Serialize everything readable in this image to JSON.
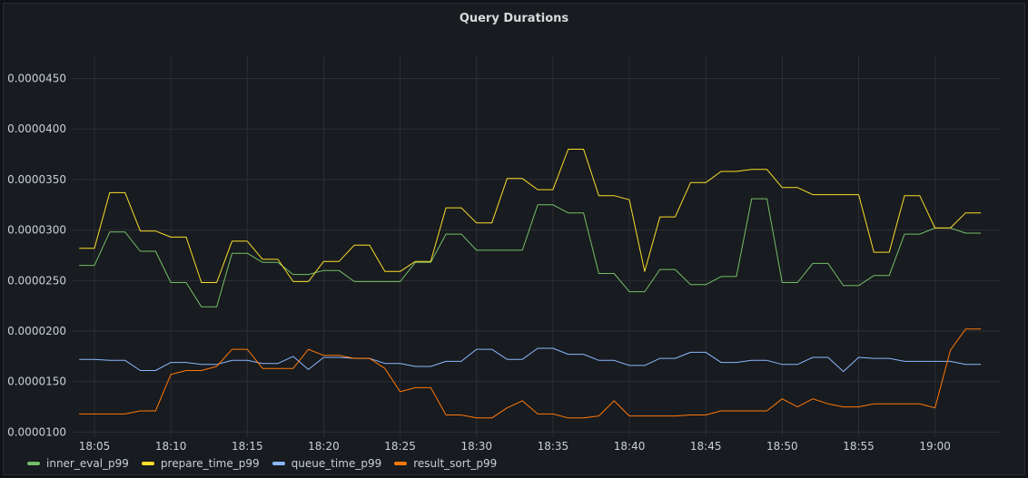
{
  "chart_data": {
    "type": "line",
    "title": "Query Durations",
    "xlabel": "",
    "ylabel": "",
    "x": [
      "18:04",
      "18:05",
      "18:06",
      "18:07",
      "18:08",
      "18:09",
      "18:10",
      "18:11",
      "18:12",
      "18:13",
      "18:14",
      "18:15",
      "18:16",
      "18:17",
      "18:18",
      "18:19",
      "18:20",
      "18:21",
      "18:22",
      "18:23",
      "18:24",
      "18:25",
      "18:26",
      "18:27",
      "18:28",
      "18:29",
      "18:30",
      "18:31",
      "18:32",
      "18:33",
      "18:34",
      "18:35",
      "18:36",
      "18:37",
      "18:38",
      "18:39",
      "18:40",
      "18:41",
      "18:42",
      "18:43",
      "18:44",
      "18:45",
      "18:46",
      "18:47",
      "18:48",
      "18:49",
      "18:50",
      "18:51",
      "18:52",
      "18:53",
      "18:54",
      "18:55",
      "18:56",
      "18:57",
      "18:58",
      "18:59",
      "19:00",
      "19:01",
      "19:02",
      "19:03"
    ],
    "x_ticks": [
      "18:05",
      "18:10",
      "18:15",
      "18:20",
      "18:25",
      "18:30",
      "18:35",
      "18:40",
      "18:45",
      "18:50",
      "18:55",
      "19:00"
    ],
    "y_ticks": [
      1e-05,
      1.5e-05,
      2e-05,
      2.5e-05,
      3e-05,
      3.5e-05,
      4e-05,
      4.5e-05
    ],
    "y_tick_labels": [
      "0.0000100",
      "0.0000150",
      "0.0000200",
      "0.0000250",
      "0.0000300",
      "0.0000350",
      "0.0000400",
      "0.0000450"
    ],
    "ylim": [
      9.5e-06,
      4.72e-05
    ],
    "grid": true,
    "legend_position": "bottom-left",
    "series": [
      {
        "name": "inner_eval_p99",
        "color": "#73bf69",
        "values": [
          2.65e-05,
          2.65e-05,
          2.98e-05,
          2.98e-05,
          2.79e-05,
          2.79e-05,
          2.48e-05,
          2.48e-05,
          2.24e-05,
          2.24e-05,
          2.77e-05,
          2.77e-05,
          2.68e-05,
          2.68e-05,
          2.56e-05,
          2.56e-05,
          2.6e-05,
          2.6e-05,
          2.49e-05,
          2.49e-05,
          2.49e-05,
          2.49e-05,
          2.68e-05,
          2.68e-05,
          2.96e-05,
          2.96e-05,
          2.8e-05,
          2.8e-05,
          2.8e-05,
          2.8e-05,
          3.25e-05,
          3.25e-05,
          3.17e-05,
          3.17e-05,
          2.57e-05,
          2.57e-05,
          2.39e-05,
          2.39e-05,
          2.61e-05,
          2.61e-05,
          2.46e-05,
          2.46e-05,
          2.54e-05,
          2.54e-05,
          3.31e-05,
          3.31e-05,
          2.48e-05,
          2.48e-05,
          2.67e-05,
          2.67e-05,
          2.45e-05,
          2.45e-05,
          2.55e-05,
          2.55e-05,
          2.96e-05,
          2.96e-05,
          3.02e-05,
          3.02e-05,
          2.97e-05,
          2.97e-05
        ]
      },
      {
        "name": "prepare_time_p99",
        "color": "#fade2a",
        "values": [
          2.82e-05,
          2.82e-05,
          3.37e-05,
          3.37e-05,
          2.99e-05,
          2.99e-05,
          2.93e-05,
          2.93e-05,
          2.48e-05,
          2.48e-05,
          2.89e-05,
          2.89e-05,
          2.71e-05,
          2.71e-05,
          2.49e-05,
          2.49e-05,
          2.69e-05,
          2.69e-05,
          2.85e-05,
          2.85e-05,
          2.59e-05,
          2.59e-05,
          2.69e-05,
          2.69e-05,
          3.22e-05,
          3.22e-05,
          3.07e-05,
          3.07e-05,
          3.51e-05,
          3.51e-05,
          3.4e-05,
          3.4e-05,
          3.8e-05,
          3.8e-05,
          3.34e-05,
          3.34e-05,
          3.3e-05,
          2.59e-05,
          3.13e-05,
          3.13e-05,
          3.47e-05,
          3.47e-05,
          3.58e-05,
          3.58e-05,
          3.6e-05,
          3.6e-05,
          3.42e-05,
          3.42e-05,
          3.35e-05,
          3.35e-05,
          3.35e-05,
          3.35e-05,
          2.78e-05,
          2.78e-05,
          3.34e-05,
          3.34e-05,
          3.02e-05,
          3.02e-05,
          3.17e-05,
          3.17e-05
        ]
      },
      {
        "name": "queue_time_p99",
        "color": "#8ab8ff",
        "values": [
          1.72e-05,
          1.72e-05,
          1.71e-05,
          1.71e-05,
          1.61e-05,
          1.61e-05,
          1.69e-05,
          1.69e-05,
          1.67e-05,
          1.67e-05,
          1.71e-05,
          1.71e-05,
          1.68e-05,
          1.68e-05,
          1.75e-05,
          1.62e-05,
          1.74e-05,
          1.74e-05,
          1.73e-05,
          1.73e-05,
          1.68e-05,
          1.68e-05,
          1.65e-05,
          1.65e-05,
          1.7e-05,
          1.7e-05,
          1.82e-05,
          1.82e-05,
          1.72e-05,
          1.72e-05,
          1.83e-05,
          1.83e-05,
          1.77e-05,
          1.77e-05,
          1.71e-05,
          1.71e-05,
          1.66e-05,
          1.66e-05,
          1.73e-05,
          1.73e-05,
          1.79e-05,
          1.79e-05,
          1.69e-05,
          1.69e-05,
          1.71e-05,
          1.71e-05,
          1.67e-05,
          1.67e-05,
          1.74e-05,
          1.74e-05,
          1.6e-05,
          1.74e-05,
          1.73e-05,
          1.73e-05,
          1.7e-05,
          1.7e-05,
          1.7e-05,
          1.7e-05,
          1.67e-05,
          1.67e-05
        ]
      },
      {
        "name": "result_sort_p99",
        "color": "#ff780a",
        "values": [
          1.18e-05,
          1.18e-05,
          1.18e-05,
          1.18e-05,
          1.21e-05,
          1.21e-05,
          1.57e-05,
          1.61e-05,
          1.61e-05,
          1.65e-05,
          1.82e-05,
          1.82e-05,
          1.63e-05,
          1.63e-05,
          1.63e-05,
          1.82e-05,
          1.76e-05,
          1.76e-05,
          1.73e-05,
          1.73e-05,
          1.63e-05,
          1.4e-05,
          1.44e-05,
          1.44e-05,
          1.17e-05,
          1.17e-05,
          1.14e-05,
          1.14e-05,
          1.24e-05,
          1.31e-05,
          1.18e-05,
          1.18e-05,
          1.14e-05,
          1.14e-05,
          1.16e-05,
          1.31e-05,
          1.16e-05,
          1.16e-05,
          1.16e-05,
          1.16e-05,
          1.17e-05,
          1.17e-05,
          1.21e-05,
          1.21e-05,
          1.21e-05,
          1.21e-05,
          1.33e-05,
          1.25e-05,
          1.33e-05,
          1.28e-05,
          1.25e-05,
          1.25e-05,
          1.28e-05,
          1.28e-05,
          1.28e-05,
          1.28e-05,
          1.24e-05,
          1.81e-05,
          2.02e-05,
          2.02e-05
        ]
      }
    ]
  }
}
